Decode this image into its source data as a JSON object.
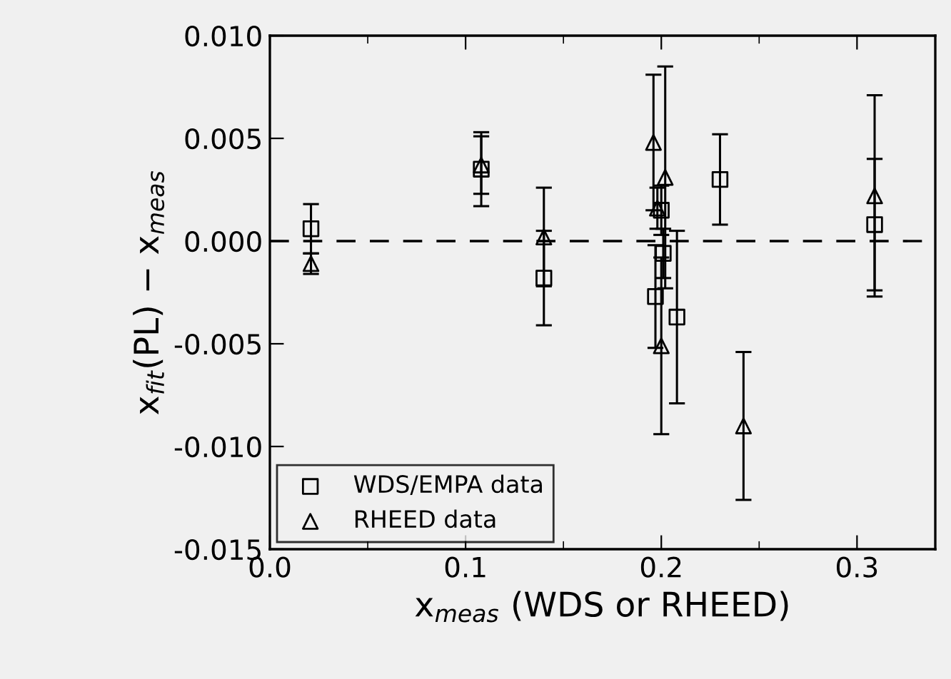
{
  "chart_data": {
    "type": "scatter",
    "xlabel": "x$_{meas}$ (WDS or RHEED)",
    "ylabel": "x$_{fit}$(PL) − x$_{meas}$",
    "series": [
      {
        "name": "WDS/EMPA data",
        "color": "#000000",
        "marker": "square",
        "x": [
          0.021,
          0.108,
          0.14,
          0.197,
          0.2,
          0.201,
          0.208,
          0.23,
          0.309
        ],
        "values": [
          0.0006,
          0.0035,
          -0.0018,
          -0.0027,
          0.0015,
          -0.0006,
          -0.0037,
          0.003,
          0.0008
        ],
        "errors": [
          0.0012,
          0.0018,
          0.0023,
          0.0025,
          0.0012,
          0.0012,
          0.0042,
          0.0022,
          0.0032
        ]
      },
      {
        "name": "RHEED data",
        "color": "#000000",
        "marker": "triangle",
        "x": [
          0.021,
          0.108,
          0.14,
          0.196,
          0.198,
          0.2,
          0.202,
          0.242,
          0.309
        ],
        "values": [
          -0.0011,
          0.0037,
          0.0002,
          0.0048,
          0.0016,
          -0.0051,
          0.0031,
          -0.009,
          0.0022
        ],
        "errors": [
          0.0005,
          0.0014,
          0.0024,
          0.0033,
          0.001,
          0.0043,
          0.0054,
          0.0036,
          0.0049
        ]
      }
    ],
    "xlim": [
      0,
      0.34
    ],
    "ylim": [
      -0.015,
      0.01
    ],
    "xticks": [
      {
        "value": 0,
        "label": "0.0"
      },
      {
        "value": 0.05,
        "label": null
      },
      {
        "value": 0.1,
        "label": "0.1"
      },
      {
        "value": 0.15,
        "label": null
      },
      {
        "value": 0.2,
        "label": "0.2"
      },
      {
        "value": 0.25,
        "label": null
      },
      {
        "value": 0.3,
        "label": "0.3"
      }
    ],
    "yticks": [
      {
        "value": -0.015,
        "label": "-0.015"
      },
      {
        "value": -0.01,
        "label": "-0.010"
      },
      {
        "value": -0.005,
        "label": "-0.005"
      },
      {
        "value": 0,
        "label": "0.000"
      },
      {
        "value": 0.005,
        "label": "0.005"
      },
      {
        "value": 0.01,
        "label": "0.010"
      }
    ],
    "ref_lines": [
      {
        "axis": "y",
        "value": 0,
        "line_style": "dashed",
        "color": "#000000"
      }
    ],
    "legend": "bottom left",
    "grid": false
  }
}
